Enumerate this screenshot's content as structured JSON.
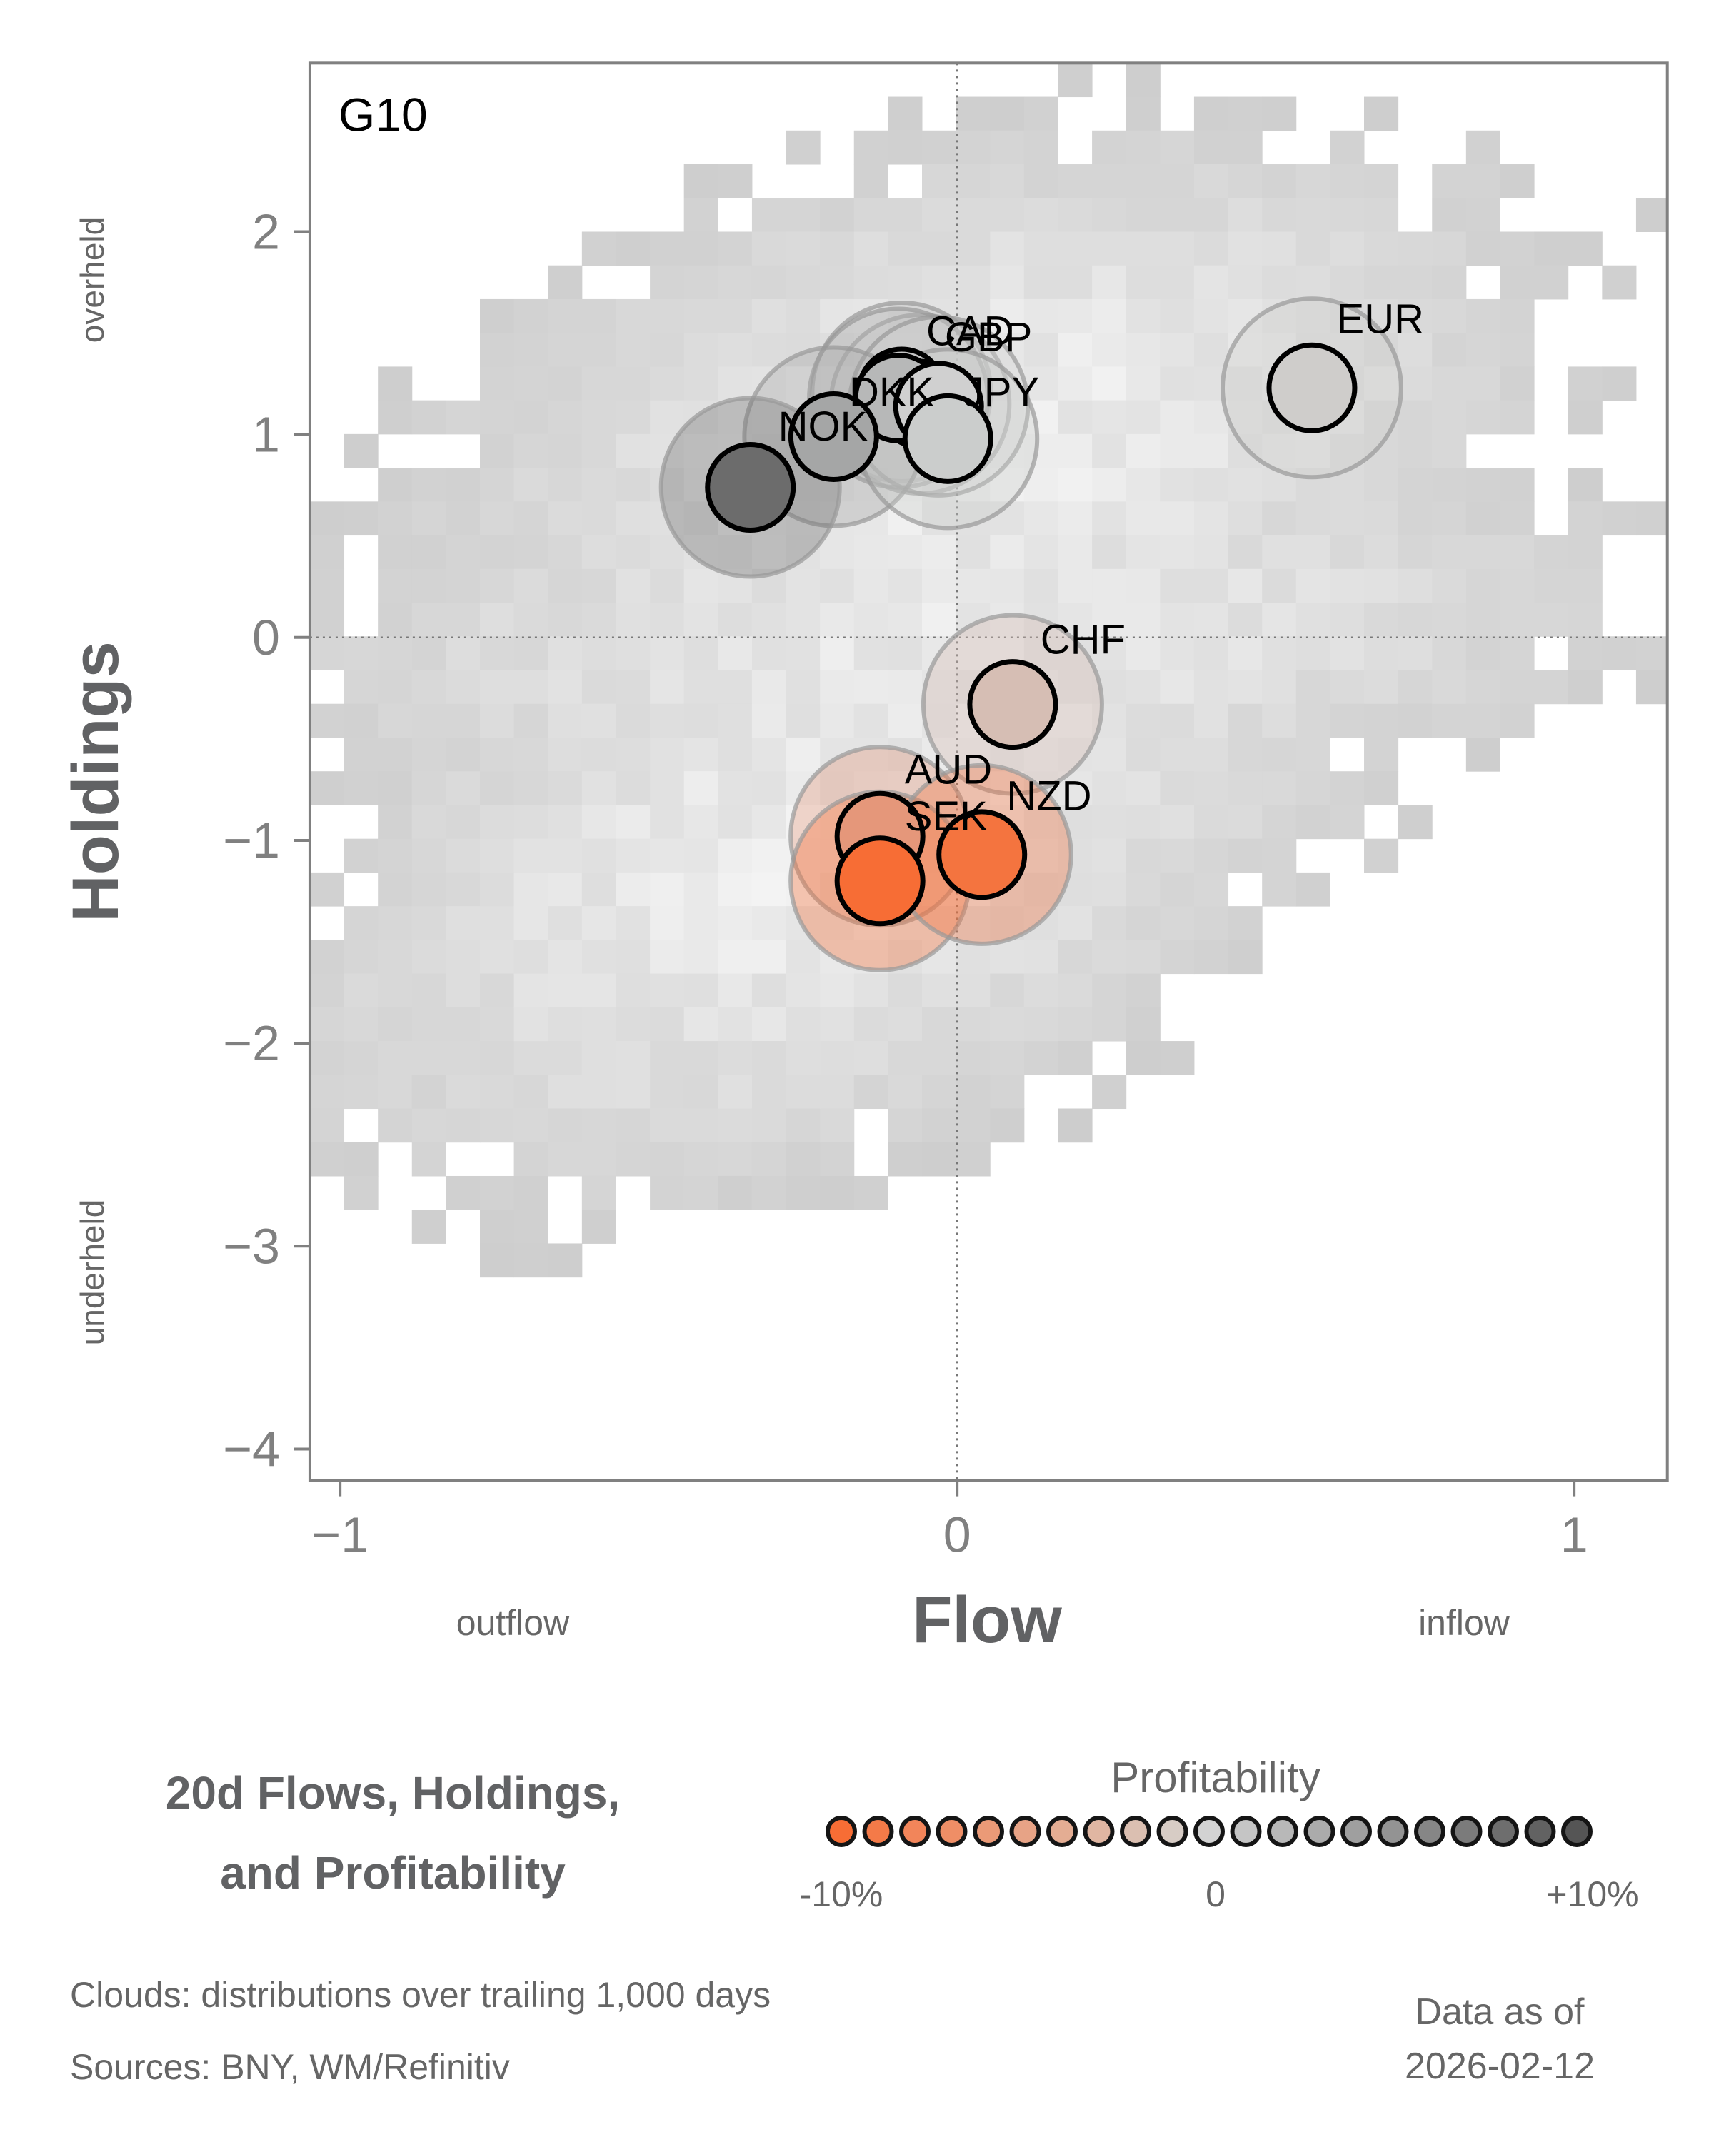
{
  "chart_data": {
    "type": "scatter",
    "panel_label": "G10",
    "title": "20d Flows, Holdings, and Profitability",
    "title_lines": [
      "20d Flows, Holdings,",
      "and Profitability"
    ],
    "xlabel": "Flow",
    "ylabel": "Holdings",
    "x_annotations": {
      "left": "outflow",
      "right": "inflow"
    },
    "y_annotations": {
      "top": "overheld",
      "bottom": "underheld"
    },
    "xlim": [
      -1.05,
      1.15
    ],
    "ylim": [
      -4.15,
      2.83
    ],
    "x_ticks": [
      -1,
      0,
      1
    ],
    "x_tick_labels": [
      "−1",
      "0",
      "1"
    ],
    "y_ticks": [
      2,
      1,
      0,
      -1,
      -2,
      -3,
      -4
    ],
    "y_tick_labels": [
      "2",
      "1",
      "0",
      "−1",
      "−2",
      "−3",
      "−4"
    ],
    "reference_lines": {
      "x": 0,
      "y": 0,
      "style": "dotted"
    },
    "background": "2D histogram clouds (grayscale) of trailing distributions",
    "points": [
      {
        "label": "EUR",
        "x": 0.575,
        "y": 1.23,
        "profitability": 0.5,
        "color": "#cfcdcb",
        "label_dx": 0.04,
        "label_dy": 0.27
      },
      {
        "label": "CAD",
        "x": -0.09,
        "y": 1.21,
        "profitability": 1.0,
        "color": "#c4c4c4",
        "label_dx": 0.04,
        "label_dy": 0.23
      },
      {
        "label": "GBP",
        "x": -0.06,
        "y": 1.15,
        "profitability": 0.5,
        "color": "#cdcdcd",
        "label_dx": 0.04,
        "label_dy": 0.26
      },
      {
        "label": "DKK",
        "x": -0.095,
        "y": 1.18,
        "profitability": 1.5,
        "color": "#b7b8b8",
        "label_dx": -0.08,
        "label_dy": -0.04
      },
      {
        "label": "JPY",
        "x": -0.03,
        "y": 1.14,
        "profitability": 0.0,
        "color": "#d0d0d0",
        "label_dx": 0.04,
        "label_dy": 0.0
      },
      {
        "label": "NOK",
        "x": -0.2,
        "y": 0.99,
        "profitability": 3.0,
        "color": "#a5a6a6",
        "label_dx": -0.09,
        "label_dy": -0.02
      },
      {
        "label": "",
        "x": -0.335,
        "y": 0.74,
        "profitability": 9.0,
        "color": "#6c6c6c",
        "label_dx": 0,
        "label_dy": 0
      },
      {
        "label": "JPY_dot",
        "x": -0.015,
        "y": 0.98,
        "profitability": 0.5,
        "color": "#cbcdcc",
        "label_dx": 0,
        "label_dy": 0
      },
      {
        "label": "CHF",
        "x": 0.09,
        "y": -0.33,
        "profitability": -1.5,
        "color": "#d6beb4",
        "label_dx": 0.045,
        "label_dy": 0.25
      },
      {
        "label": "AUD",
        "x": -0.125,
        "y": -0.98,
        "profitability": -6.5,
        "color": "#e5977a",
        "label_dx": 0.04,
        "label_dy": 0.26
      },
      {
        "label": "SEK",
        "x": -0.125,
        "y": -1.2,
        "profitability": -10.0,
        "color": "#f76d35",
        "label_dx": 0.04,
        "label_dy": 0.25
      },
      {
        "label": "NZD",
        "x": 0.04,
        "y": -1.07,
        "profitability": -9.5,
        "color": "#f4743f",
        "label_dx": 0.04,
        "label_dy": 0.22
      }
    ],
    "legend": {
      "title": "Profitability",
      "min_label": "-10%",
      "mid_label": "0",
      "max_label": "+10%",
      "colors": [
        "#f76d35",
        "#f47a48",
        "#f2855a",
        "#ef8e66",
        "#eb9a77",
        "#e7a386",
        "#e4ad93",
        "#e0b6a2",
        "#dbbfb1",
        "#d7ccc5",
        "#d3d3d3",
        "#c5c5c5",
        "#b8b8b8",
        "#ababab",
        "#9f9f9f",
        "#939393",
        "#868686",
        "#7b7b7b",
        "#6e6e6e",
        "#626262",
        "#555555"
      ]
    }
  },
  "footer": {
    "clouds_note": "Clouds:  distributions over trailing 1,000 days",
    "sources_note": "Sources:  BNY, WM/Refinitiv",
    "as_of_label": "Data as of",
    "as_of_date": "2026-02-12"
  }
}
